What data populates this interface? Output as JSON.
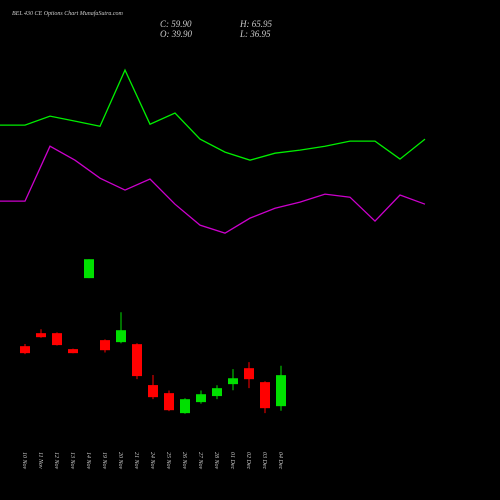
{
  "chart_data": [
    {
      "type": "candlestick",
      "title": "BEL 430 CE Options Chart MunafaSutra.com",
      "annotations": [
        "C: 59.90",
        "H: 65.95",
        "O: 39.90",
        "L: 36.95"
      ],
      "categories": [
        "10 Nov",
        "11 Nov",
        "12 Nov",
        "13 Nov",
        "14 Nov",
        "19 Nov",
        "20 Nov",
        "21 Nov",
        "24 Nov",
        "25 Nov",
        "26 Nov",
        "27 Nov",
        "28 Nov",
        "01 Dec",
        "02 Dec",
        "03 Dec",
        "04 Dec"
      ],
      "open": [
        78.6,
        87.0,
        87.0,
        76.7,
        122.5,
        82.5,
        81.2,
        79.9,
        53.5,
        48.3,
        35.4,
        42.5,
        46.4,
        54.1,
        64.4,
        55.4,
        39.9
      ],
      "high": [
        80.0,
        89.5,
        87.5,
        77.0,
        134.7,
        83.0,
        100.5,
        80.5,
        60.0,
        50.0,
        45.0,
        50.0,
        53.4,
        63.8,
        68.3,
        56.0,
        65.95
      ],
      "low": [
        73.5,
        84.0,
        79.0,
        74.0,
        122.5,
        74.5,
        80.5,
        57.3,
        44.4,
        36.7,
        35.0,
        41.5,
        44.4,
        50.2,
        51.5,
        35.4,
        36.95
      ],
      "close": [
        74.1,
        84.4,
        79.3,
        74.1,
        134.7,
        76.0,
        88.9,
        59.3,
        45.7,
        37.3,
        44.4,
        47.6,
        51.5,
        57.9,
        57.3,
        38.6,
        59.9
      ],
      "up_color": "#00e000",
      "down_color": "#ff0000",
      "ylim": [
        0,
        300
      ]
    },
    {
      "type": "line",
      "categories": [
        null,
        null,
        null,
        null,
        null,
        null,
        null,
        null,
        null,
        null,
        null,
        null,
        null,
        null,
        null,
        null,
        null,
        null
      ],
      "series": [
        {
          "color": "#00ee00",
          "values": [
            221.2,
            221.2,
            227.0,
            223.8,
            220.5,
            256.7,
            221.8,
            229.0,
            212.2,
            203.8,
            198.6,
            203.1,
            205.1,
            207.6,
            210.9,
            210.9,
            199.3,
            212.2
          ]
        },
        {
          "color": "#cc00cc",
          "values": [
            172.2,
            172.2,
            207.6,
            198.6,
            187.0,
            179.3,
            186.4,
            170.2,
            156.7,
            151.5,
            161.2,
            167.6,
            171.5,
            176.7,
            174.7,
            159.3,
            176.1,
            170.2
          ]
        }
      ],
      "ylim": [
        0,
        300
      ]
    }
  ]
}
